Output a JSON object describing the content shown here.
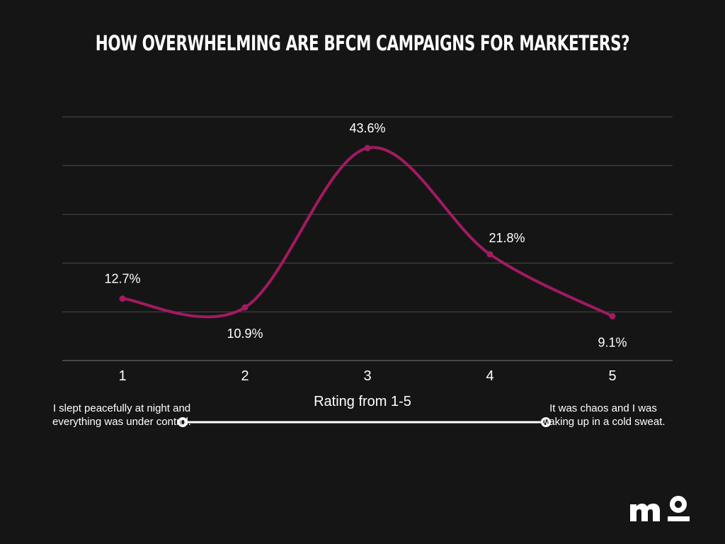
{
  "title": "HOW OVERWHELMING ARE BFCM CAMPAIGNS FOR MARKETERS?",
  "chart_data": {
    "type": "line",
    "title": "HOW OVERWHELMING ARE BFCM CAMPAIGNS FOR MARKETERS?",
    "xlabel": "Rating from 1-5",
    "ylabel": "",
    "categories": [
      "1",
      "2",
      "3",
      "4",
      "5"
    ],
    "series": [
      {
        "values": [
          12.7,
          10.9,
          43.6,
          21.8,
          9.1
        ],
        "labels": [
          "12.7%",
          "10.9%",
          "43.6%",
          "21.8%",
          "9.1%"
        ],
        "color": "#a11a62"
      }
    ],
    "ylim": [
      0,
      50
    ],
    "y_ticks": [
      0,
      10,
      20,
      30,
      40,
      50
    ],
    "y_tick_labels_visible": false,
    "grid": true,
    "smooth": true
  },
  "scale": {
    "low_label": "I slept peacefully at night and everything was under control.",
    "high_label": "It was chaos and I was waking up in a cold sweat."
  },
  "colors": {
    "background": "#161515",
    "line": "#a11a62",
    "grid": "#4a4a4a",
    "text": "#ffffff"
  },
  "logo": {
    "name": "mo-logo"
  }
}
